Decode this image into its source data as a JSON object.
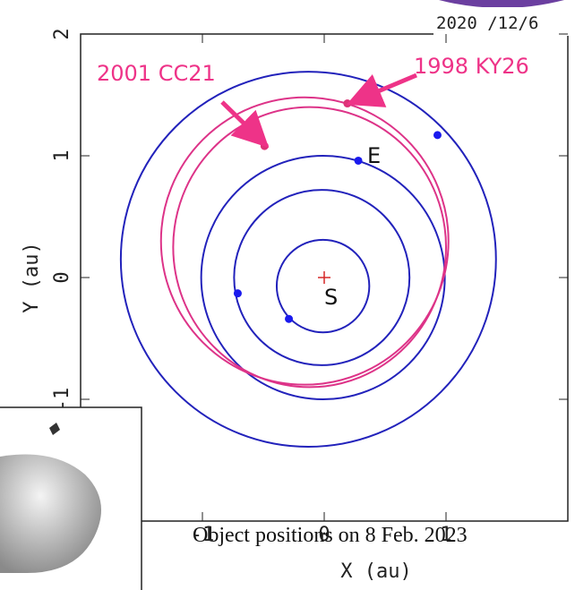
{
  "chart_data": {
    "type": "orbit",
    "x_label": "X (au)",
    "y_label": "Y (au)",
    "subtitle": "Object positions on 8 Feb. 2023",
    "date_stamp": "2020 /12/6",
    "xlim": [
      -2,
      2
    ],
    "ylim": [
      -2,
      2
    ],
    "xticks": [
      -1,
      0,
      1
    ],
    "yticks": [
      -1,
      0,
      1,
      2
    ],
    "sun": {
      "label": "S",
      "x": 0,
      "y": 0,
      "color": "#d62828"
    },
    "orbits": [
      {
        "color": "#2222bb",
        "cx": -0.01,
        "cy": -0.07,
        "rx": 0.38,
        "ry": 0.38
      },
      {
        "color": "#2222bb",
        "cx": -0.02,
        "cy": 0.0,
        "rx": 0.72,
        "ry": 0.72
      },
      {
        "color": "#2222bb",
        "cx": -0.01,
        "cy": 0.0,
        "rx": 1.0,
        "ry": 1.0
      },
      {
        "color": "#2222bb",
        "cx": -0.13,
        "cy": 0.15,
        "rx": 1.54,
        "ry": 1.54
      },
      {
        "color": "#dd3388",
        "cx": -0.12,
        "cy": 0.25,
        "rx": 1.12,
        "ry": 1.15
      },
      {
        "color": "#dd3388",
        "cx": -0.16,
        "cy": 0.3,
        "rx": 1.18,
        "ry": 1.18
      }
    ],
    "series": [
      {
        "color": "#1a1aee",
        "x": [
          -0.29,
          -0.71,
          0.28,
          0.93
        ],
        "y": [
          -0.34,
          -0.13,
          0.96,
          1.17
        ]
      },
      {
        "color": "#dd3377",
        "x": [
          -0.49,
          0.19
        ],
        "y": [
          1.08,
          1.43
        ]
      }
    ],
    "annotations": [
      "2001 CC21",
      "1998 KY26",
      "E"
    ]
  }
}
